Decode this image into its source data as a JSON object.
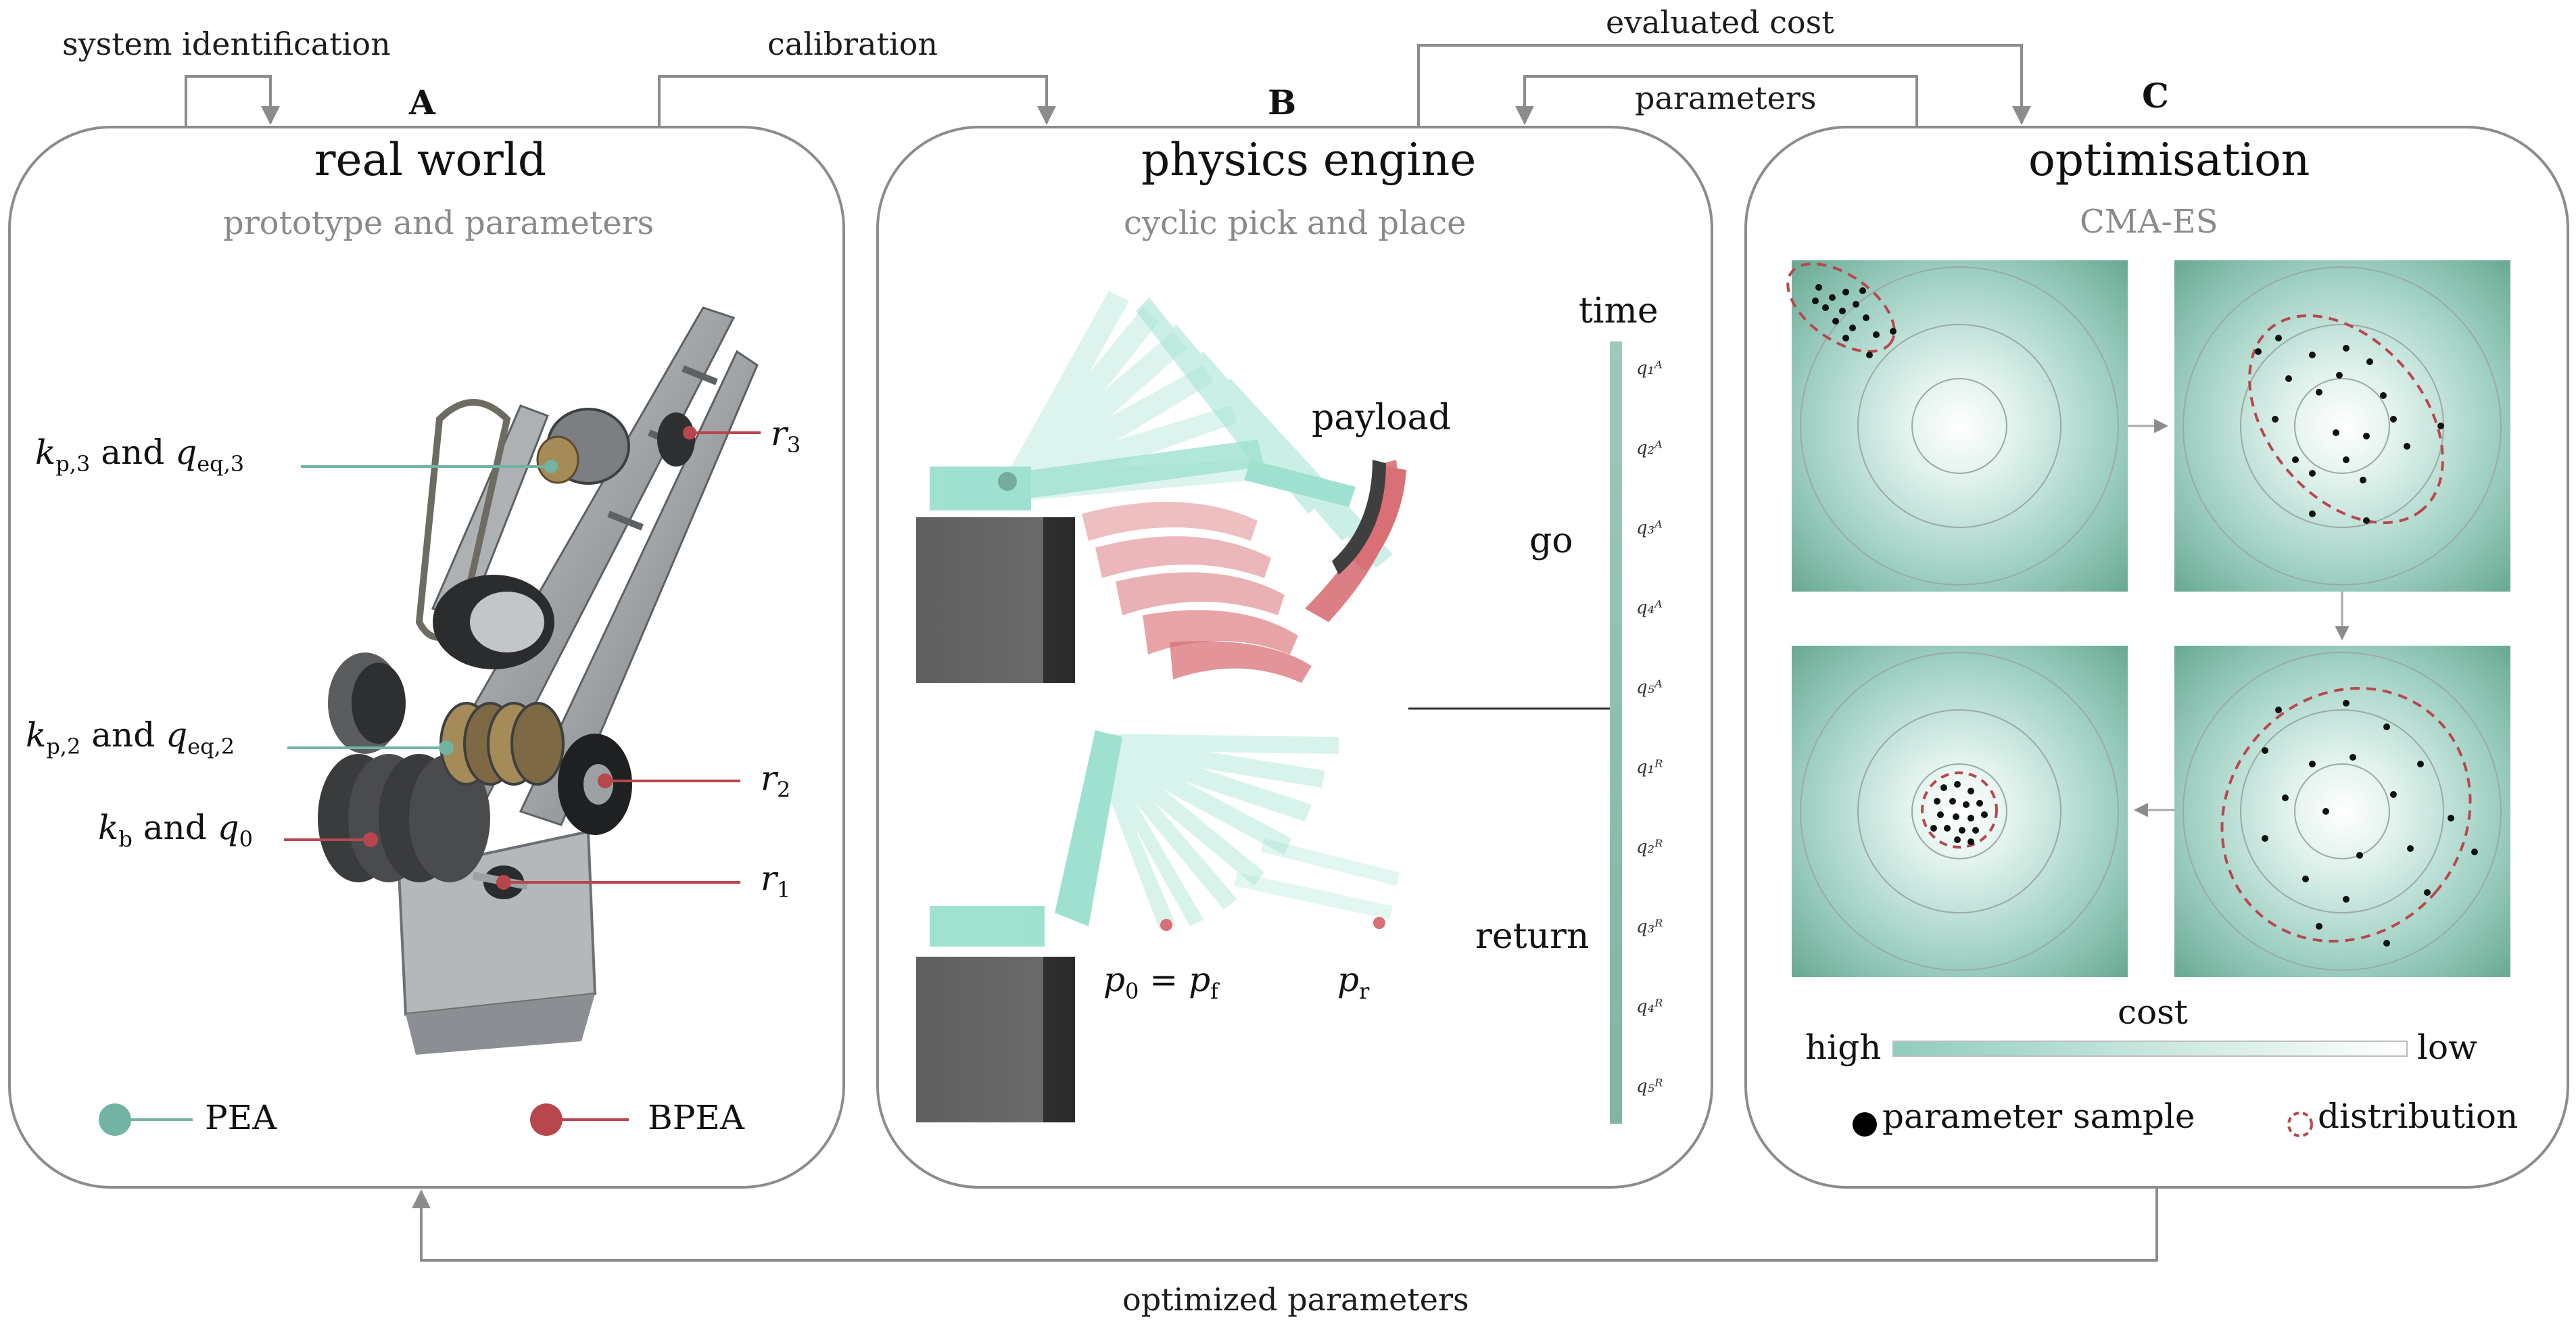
{
  "flow_labels": {
    "system_identification": "system identification",
    "calibration": "calibration",
    "evaluated_cost": "evaluated cost",
    "parameters": "parameters",
    "optimized_parameters": "optimized parameters"
  },
  "panel_a": {
    "letter": "A",
    "title": "real world",
    "subtitle": "prototype and parameters",
    "labels": {
      "kp3": "k",
      "kp3_sub": "p,3",
      "and": "and",
      "qeq3": "q",
      "qeq3_sub": "eq,3",
      "kp2": "k",
      "kp2_sub": "p,2",
      "qeq2": "q",
      "qeq2_sub": "eq,2",
      "kb": "k",
      "kb_sub": "b",
      "q0": "q",
      "q0_sub": "0",
      "r3": "r",
      "r3_sub": "3",
      "r2": "r",
      "r2_sub": "2",
      "r1": "r",
      "r1_sub": "1"
    },
    "legend": {
      "pea": "PEA",
      "bpea": "BPEA"
    }
  },
  "panel_b": {
    "letter": "B",
    "title": "physics engine",
    "subtitle": "cyclic pick and place",
    "time_label": "time",
    "payload_label": "payload",
    "go_label": "go",
    "return_label": "return",
    "p0_pf": "p",
    "p0_sub": "0",
    "eq": " = ",
    "pf_sub": "f",
    "pr_sub": "r",
    "ticks": [
      "q₁ᴬ",
      "q₂ᴬ",
      "q₃ᴬ",
      "q₄ᴬ",
      "q₅ᴬ",
      "q₁ᴿ",
      "q₂ᴿ",
      "q₃ᴿ",
      "q₄ᴿ",
      "q₅ᴿ"
    ]
  },
  "panel_c": {
    "letter": "C",
    "title": "optimisation",
    "subtitle": "CMA-ES",
    "cost_label": "cost",
    "high_label": "high",
    "low_label": "low",
    "legend": {
      "sample": "parameter sample",
      "distribution": "distribution"
    }
  },
  "colors": {
    "pea": "#73b3a4",
    "bpea": "#b8474d",
    "teal_field": "#6fae9c",
    "arm": "#8fdcc8",
    "payload": "#d2585e",
    "frame": "#8c8c8c"
  }
}
